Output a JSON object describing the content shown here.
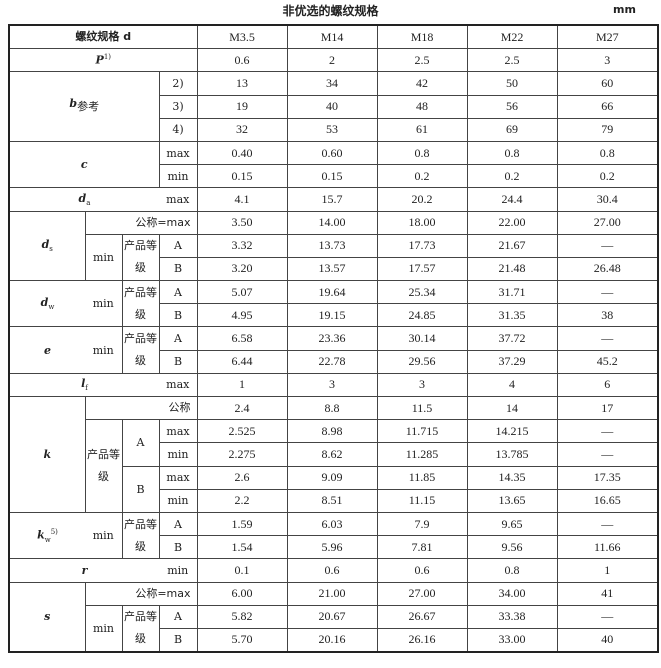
{
  "title": "非优选的螺纹规格",
  "unit": "mm",
  "labels": {
    "spec": "螺纹规格 d",
    "p": "P",
    "p_note": "1)",
    "b": "b",
    "b_sub": "参考",
    "n2": "2)",
    "n3": "3)",
    "n4": "4)",
    "c": "c",
    "max": "max",
    "min": "min",
    "da": "d",
    "da_sub": "a",
    "ds": "d",
    "ds_sub": "s",
    "dw": "d",
    "dw_sub": "w",
    "e": "e",
    "lf": "l",
    "lf_sub": "f",
    "k": "k",
    "kw": "k",
    "kw_sub": "w",
    "kw_note": "5)",
    "r": "r",
    "s": "s",
    "nominal_max": "公称=max",
    "nominal": "公称",
    "grade": "产品等级",
    "A": "A",
    "B": "B"
  },
  "rows": [
    {
      "values": [
        "M3.5",
        "M14",
        "M18",
        "M22",
        "M27"
      ]
    },
    {
      "values": [
        "0.6",
        "2",
        "2.5",
        "2.5",
        "3"
      ]
    },
    {
      "values": [
        "13",
        "34",
        "42",
        "50",
        "60"
      ]
    },
    {
      "values": [
        "19",
        "40",
        "48",
        "56",
        "66"
      ]
    },
    {
      "values": [
        "32",
        "53",
        "61",
        "69",
        "79"
      ]
    },
    {
      "values": [
        "0.40",
        "0.60",
        "0.8",
        "0.8",
        "0.8"
      ]
    },
    {
      "values": [
        "0.15",
        "0.15",
        "0.2",
        "0.2",
        "0.2"
      ]
    },
    {
      "values": [
        "4.1",
        "15.7",
        "20.2",
        "24.4",
        "30.4"
      ]
    },
    {
      "values": [
        "3.50",
        "14.00",
        "18.00",
        "22.00",
        "27.00"
      ]
    },
    {
      "values": [
        "3.32",
        "13.73",
        "17.73",
        "21.67",
        "—"
      ]
    },
    {
      "values": [
        "3.20",
        "13.57",
        "17.57",
        "21.48",
        "26.48"
      ]
    },
    {
      "values": [
        "5.07",
        "19.64",
        "25.34",
        "31.71",
        "—"
      ]
    },
    {
      "values": [
        "4.95",
        "19.15",
        "24.85",
        "31.35",
        "38"
      ]
    },
    {
      "values": [
        "6.58",
        "23.36",
        "30.14",
        "37.72",
        "—"
      ]
    },
    {
      "values": [
        "6.44",
        "22.78",
        "29.56",
        "37.29",
        "45.2"
      ]
    },
    {
      "values": [
        "1",
        "3",
        "3",
        "4",
        "6"
      ]
    },
    {
      "values": [
        "2.4",
        "8.8",
        "11.5",
        "14",
        "17"
      ]
    },
    {
      "values": [
        "2.525",
        "8.98",
        "11.715",
        "14.215",
        "—"
      ]
    },
    {
      "values": [
        "2.275",
        "8.62",
        "11.285",
        "13.785",
        "—"
      ]
    },
    {
      "values": [
        "2.6",
        "9.09",
        "11.85",
        "14.35",
        "17.35"
      ]
    },
    {
      "values": [
        "2.2",
        "8.51",
        "11.15",
        "13.65",
        "16.65"
      ]
    },
    {
      "values": [
        "1.59",
        "6.03",
        "7.9",
        "9.65",
        "—"
      ]
    },
    {
      "values": [
        "1.54",
        "5.96",
        "7.81",
        "9.56",
        "11.66"
      ]
    },
    {
      "values": [
        "0.1",
        "0.6",
        "0.6",
        "0.8",
        "1"
      ]
    },
    {
      "values": [
        "6.00",
        "21.00",
        "27.00",
        "34.00",
        "41"
      ]
    },
    {
      "values": [
        "5.82",
        "20.67",
        "26.67",
        "33.38",
        "—"
      ]
    },
    {
      "values": [
        "5.70",
        "20.16",
        "26.16",
        "33.00",
        "40"
      ]
    }
  ]
}
